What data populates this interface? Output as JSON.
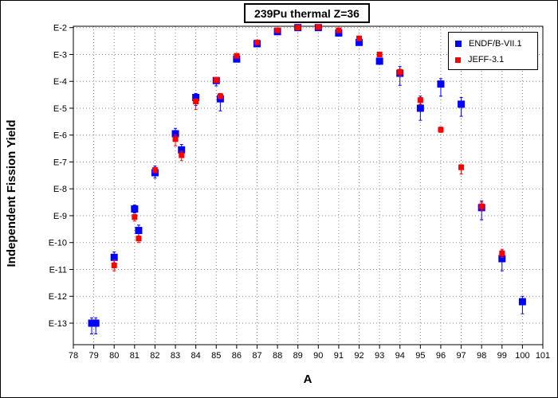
{
  "chart_data": {
    "type": "scatter",
    "title": "239Pu thermal Z=36",
    "xlabel": "A",
    "ylabel": "Independent Fission Yield",
    "xlim": [
      78,
      101
    ],
    "ylim_log10": [
      -13.8,
      -1.95
    ],
    "yscale": "log",
    "x_ticks": [
      78,
      79,
      80,
      81,
      82,
      83,
      84,
      85,
      86,
      87,
      88,
      89,
      90,
      91,
      92,
      93,
      94,
      95,
      96,
      97,
      98,
      99,
      100,
      101
    ],
    "y_ticks": [
      {
        "value": -2,
        "label": "E-2"
      },
      {
        "value": -3,
        "label": "E-3"
      },
      {
        "value": -4,
        "label": "E-4"
      },
      {
        "value": -5,
        "label": "E-5"
      },
      {
        "value": -6,
        "label": "E-6"
      },
      {
        "value": -7,
        "label": "E-7"
      },
      {
        "value": -8,
        "label": "E-8"
      },
      {
        "value": -9,
        "label": "E-9"
      },
      {
        "value": -10,
        "label": "E-10"
      },
      {
        "value": -11,
        "label": "E-11"
      },
      {
        "value": -12,
        "label": "E-12"
      },
      {
        "value": -13,
        "label": "E-13"
      }
    ],
    "grid": true,
    "legend_position": "top-right",
    "series": [
      {
        "name": "ENDF/B-VII.1",
        "color": "#0000ff",
        "marker": "square",
        "points": [
          {
            "x": 78.9,
            "log10y": -13.0,
            "err_lo": 0.4,
            "err_hi": 0.2
          },
          {
            "x": 79.1,
            "log10y": -13.0,
            "err_lo": 0.4,
            "err_hi": 0.2
          },
          {
            "x": 80.0,
            "log10y": -10.55,
            "err_lo": 0.2,
            "err_hi": 0.2
          },
          {
            "x": 81.0,
            "log10y": -8.75,
            "err_lo": 0.15,
            "err_hi": 0.15
          },
          {
            "x": 81.2,
            "log10y": -9.55,
            "err_lo": 0.25,
            "err_hi": 0.2
          },
          {
            "x": 82.0,
            "log10y": -7.4,
            "err_lo": 0.2,
            "err_hi": 0.25
          },
          {
            "x": 83.0,
            "log10y": -5.95,
            "err_lo": 0.15,
            "err_hi": 0.2
          },
          {
            "x": 83.3,
            "log10y": -6.55,
            "err_lo": 0.2,
            "err_hi": 0.2
          },
          {
            "x": 84.0,
            "log10y": -4.6,
            "err_lo": 0.3,
            "err_hi": 0.15
          },
          {
            "x": 85.0,
            "log10y": -3.97,
            "err_lo": 0.2,
            "err_hi": 0.1
          },
          {
            "x": 85.2,
            "log10y": -4.65,
            "err_lo": 0.45,
            "err_hi": 0.15
          },
          {
            "x": 86.0,
            "log10y": -3.17,
            "err_lo": 0.05,
            "err_hi": 0.05
          },
          {
            "x": 87.0,
            "log10y": -2.6,
            "err_lo": 0.04,
            "err_hi": 0.04
          },
          {
            "x": 88.0,
            "log10y": -2.15,
            "err_lo": 0.03,
            "err_hi": 0.03
          },
          {
            "x": 89.0,
            "log10y": -2.0,
            "err_lo": 0.03,
            "err_hi": 0.03
          },
          {
            "x": 90.0,
            "log10y": -2.0,
            "err_lo": 0.03,
            "err_hi": 0.03
          },
          {
            "x": 91.0,
            "log10y": -2.2,
            "err_lo": 0.03,
            "err_hi": 0.03
          },
          {
            "x": 92.0,
            "log10y": -2.55,
            "err_lo": 0.05,
            "err_hi": 0.05
          },
          {
            "x": 93.0,
            "log10y": -3.25,
            "err_lo": 0.08,
            "err_hi": 0.08
          },
          {
            "x": 94.0,
            "log10y": -3.7,
            "err_lo": 0.45,
            "err_hi": 0.25
          },
          {
            "x": 95.0,
            "log10y": -5.0,
            "err_lo": 0.45,
            "err_hi": 0.45
          },
          {
            "x": 96.0,
            "log10y": -4.1,
            "err_lo": 0.45,
            "err_hi": 0.2
          },
          {
            "x": 97.0,
            "log10y": -4.85,
            "err_lo": 0.45,
            "err_hi": 0.25
          },
          {
            "x": 98.0,
            "log10y": -8.7,
            "err_lo": 0.45,
            "err_hi": 0.25
          },
          {
            "x": 99.0,
            "log10y": -10.6,
            "err_lo": 0.45,
            "err_hi": 0.3
          },
          {
            "x": 100.0,
            "log10y": -12.2,
            "err_lo": 0.45,
            "err_hi": 0.2
          }
        ]
      },
      {
        "name": "JEFF-3.1",
        "color": "#ff0000",
        "marker": "square",
        "points": [
          {
            "x": 80.0,
            "log10y": -10.85,
            "err_lo": 0.2,
            "err_hi": 0.2
          },
          {
            "x": 81.0,
            "log10y": -9.05,
            "err_lo": 0.15,
            "err_hi": 0.1
          },
          {
            "x": 81.2,
            "log10y": -9.85,
            "err_lo": 0.15,
            "err_hi": 0.1
          },
          {
            "x": 82.0,
            "log10y": -7.3,
            "err_lo": 0.1,
            "err_hi": 0.1
          },
          {
            "x": 83.0,
            "log10y": -6.15,
            "err_lo": 0.25,
            "err_hi": 0.15
          },
          {
            "x": 83.3,
            "log10y": -6.75,
            "err_lo": 0.2,
            "err_hi": 0.15
          },
          {
            "x": 84.0,
            "log10y": -4.75,
            "err_lo": 0.3,
            "err_hi": 0.1
          },
          {
            "x": 85.0,
            "log10y": -3.95,
            "err_lo": 0.1,
            "err_hi": 0.1
          },
          {
            "x": 85.2,
            "log10y": -4.55,
            "err_lo": 0.1,
            "err_hi": 0.1
          },
          {
            "x": 86.0,
            "log10y": -3.05,
            "err_lo": 0.05,
            "err_hi": 0.05
          },
          {
            "x": 87.0,
            "log10y": -2.55,
            "err_lo": 0.04,
            "err_hi": 0.04
          },
          {
            "x": 88.0,
            "log10y": -2.1,
            "err_lo": 0.03,
            "err_hi": 0.03
          },
          {
            "x": 89.0,
            "log10y": -2.0,
            "err_lo": 0.03,
            "err_hi": 0.03
          },
          {
            "x": 90.0,
            "log10y": -1.98,
            "err_lo": 0.03,
            "err_hi": 0.03
          },
          {
            "x": 91.0,
            "log10y": -2.1,
            "err_lo": 0.03,
            "err_hi": 0.03
          },
          {
            "x": 92.0,
            "log10y": -2.4,
            "err_lo": 0.05,
            "err_hi": 0.05
          },
          {
            "x": 93.0,
            "log10y": -3.0,
            "err_lo": 0.08,
            "err_hi": 0.08
          },
          {
            "x": 94.0,
            "log10y": -3.65,
            "err_lo": 0.15,
            "err_hi": 0.1
          },
          {
            "x": 95.0,
            "log10y": -4.7,
            "err_lo": 0.15,
            "err_hi": 0.1
          },
          {
            "x": 96.0,
            "log10y": -5.8,
            "err_lo": 0.1,
            "err_hi": 0.1
          },
          {
            "x": 97.0,
            "log10y": -7.2,
            "err_lo": 0.25,
            "err_hi": 0.1
          },
          {
            "x": 98.0,
            "log10y": -8.65,
            "err_lo": 0.15,
            "err_hi": 0.15
          },
          {
            "x": 99.0,
            "log10y": -10.4,
            "err_lo": 0.15,
            "err_hi": 0.15
          }
        ]
      }
    ]
  }
}
